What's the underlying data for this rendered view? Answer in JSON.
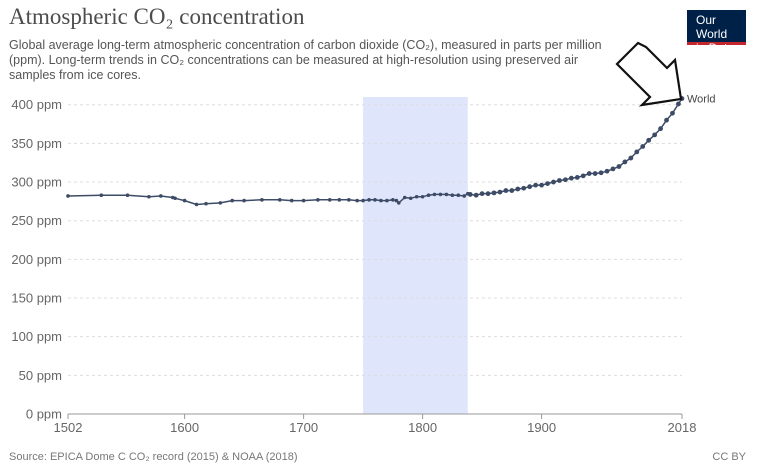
{
  "header": {
    "title": "Atmospheric CO₂ concentration",
    "subtitle": "Global average long-term atmospheric concentration of carbon dioxide (CO₂), measured in parts per million (ppm). Long-term trends in CO₂ concentrations can be measured at high-resolution using preserved air samples from ice cores."
  },
  "logo": {
    "line1": "Our World",
    "line2": "in Data"
  },
  "footer": {
    "source": "Source: EPICA Dome C CO₂ record (2015) & NOAA (2018)",
    "license": "CC BY"
  },
  "colors": {
    "series": "#3d4b66",
    "highlight_band": "#dfe6fb",
    "grid": "#dddddd",
    "logo_bg": "#002147",
    "logo_stripe": "#c4262e"
  },
  "annotations": {
    "highlight_band_years": [
      1750,
      1838
    ],
    "arrow_points_to": "World"
  },
  "chart_data": {
    "type": "line",
    "title": "Atmospheric CO₂ concentration",
    "xlabel": "",
    "ylabel": "",
    "xlim": [
      1502,
      2018
    ],
    "ylim": [
      0,
      410
    ],
    "x_ticks": [
      "1502",
      "1600",
      "1700",
      "1800",
      "1900",
      "2018"
    ],
    "y_ticks": [
      "0 ppm",
      "50 ppm",
      "100 ppm",
      "150 ppm",
      "200 ppm",
      "250 ppm",
      "300 ppm",
      "350 ppm",
      "400 ppm"
    ],
    "y_tick_values": [
      0,
      50,
      100,
      150,
      200,
      250,
      300,
      350,
      400
    ],
    "x_tick_values": [
      1502,
      1600,
      1700,
      1800,
      1900,
      2018
    ],
    "grid": true,
    "series": [
      {
        "name": "World",
        "points": [
          [
            1502,
            282
          ],
          [
            1530,
            283
          ],
          [
            1552,
            283
          ],
          [
            1570,
            281
          ],
          [
            1580,
            282
          ],
          [
            1590,
            280
          ],
          [
            1592,
            279
          ],
          [
            1600,
            276
          ],
          [
            1610,
            271
          ],
          [
            1618,
            272
          ],
          [
            1630,
            273
          ],
          [
            1640,
            276
          ],
          [
            1650,
            276
          ],
          [
            1665,
            277
          ],
          [
            1680,
            277
          ],
          [
            1690,
            276
          ],
          [
            1700,
            276
          ],
          [
            1712,
            277
          ],
          [
            1722,
            277
          ],
          [
            1730,
            277
          ],
          [
            1738,
            277
          ],
          [
            1745,
            276
          ],
          [
            1750,
            276
          ],
          [
            1755,
            277
          ],
          [
            1760,
            277
          ],
          [
            1765,
            276
          ],
          [
            1770,
            276
          ],
          [
            1775,
            277
          ],
          [
            1778,
            276
          ],
          [
            1780,
            273
          ],
          [
            1785,
            280
          ],
          [
            1790,
            279
          ],
          [
            1795,
            281
          ],
          [
            1800,
            281
          ],
          [
            1805,
            283
          ],
          [
            1810,
            284
          ],
          [
            1815,
            284
          ],
          [
            1820,
            284
          ],
          [
            1825,
            283
          ],
          [
            1830,
            283
          ],
          [
            1835,
            282
          ],
          [
            1838,
            285
          ],
          [
            1840,
            284
          ],
          [
            1845,
            283
          ],
          [
            1850,
            285
          ],
          [
            1855,
            285
          ],
          [
            1860,
            286
          ],
          [
            1865,
            287
          ],
          [
            1870,
            289
          ],
          [
            1875,
            289
          ],
          [
            1880,
            291
          ],
          [
            1885,
            292
          ],
          [
            1890,
            294
          ],
          [
            1895,
            296
          ],
          [
            1900,
            296
          ],
          [
            1905,
            298
          ],
          [
            1910,
            300
          ],
          [
            1915,
            302
          ],
          [
            1920,
            303
          ],
          [
            1925,
            305
          ],
          [
            1930,
            306
          ],
          [
            1935,
            308
          ],
          [
            1940,
            311
          ],
          [
            1945,
            311
          ],
          [
            1950,
            312
          ],
          [
            1955,
            314
          ],
          [
            1960,
            317
          ],
          [
            1965,
            320
          ],
          [
            1970,
            326
          ],
          [
            1975,
            331
          ],
          [
            1980,
            339
          ],
          [
            1985,
            346
          ],
          [
            1990,
            354
          ],
          [
            1995,
            361
          ],
          [
            2000,
            369
          ],
          [
            2005,
            380
          ],
          [
            2010,
            389
          ],
          [
            2015,
            401
          ],
          [
            2018,
            408
          ]
        ]
      }
    ],
    "series_label": "World"
  }
}
